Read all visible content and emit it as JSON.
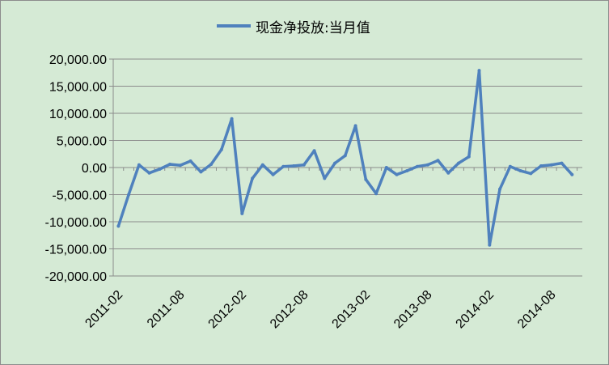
{
  "chart_data": {
    "type": "line",
    "title": "",
    "xlabel": "",
    "ylabel": "",
    "legend_position": "top",
    "grid": true,
    "colors": {
      "background": "#d5ead5",
      "line": "#4f81bd",
      "grid": "#8c8c8c"
    },
    "ylim": [
      -20000,
      20000
    ],
    "yticks": [
      "20,000.00",
      "15,000.00",
      "10,000.00",
      "5,000.00",
      "0.00",
      "-5,000.00",
      "-10,000.00",
      "-15,000.00",
      "-20,000.00"
    ],
    "xticks": [
      "2011-02",
      "2011-08",
      "2012-02",
      "2012-08",
      "2013-02",
      "2013-08",
      "2014-02",
      "2014-08"
    ],
    "series": [
      {
        "name": "现金净投放:当月值",
        "x": [
          "2011-02",
          "2011-03",
          "2011-04",
          "2011-05",
          "2011-06",
          "2011-07",
          "2011-08",
          "2011-09",
          "2011-10",
          "2011-11",
          "2011-12",
          "2012-01",
          "2012-02",
          "2012-03",
          "2012-04",
          "2012-05",
          "2012-06",
          "2012-07",
          "2012-08",
          "2012-09",
          "2012-10",
          "2012-11",
          "2012-12",
          "2013-01",
          "2013-02",
          "2013-03",
          "2013-04",
          "2013-05",
          "2013-06",
          "2013-07",
          "2013-08",
          "2013-09",
          "2013-10",
          "2013-11",
          "2013-12",
          "2014-01",
          "2014-02",
          "2014-03",
          "2014-04",
          "2014-05",
          "2014-06",
          "2014-07",
          "2014-08",
          "2014-09",
          "2014-10"
        ],
        "values": [
          -10800,
          -5000,
          500,
          -1000,
          -300,
          600,
          400,
          1200,
          -800,
          600,
          3300,
          9000,
          -8500,
          -2000,
          500,
          -1300,
          200,
          300,
          500,
          3100,
          -2000,
          800,
          2200,
          7700,
          -2200,
          -4800,
          0,
          -1300,
          -600,
          200,
          500,
          1300,
          -1000,
          800,
          2000,
          17900,
          -14300,
          -4000,
          200,
          -600,
          -1100,
          300,
          500,
          800,
          -1300
        ]
      }
    ]
  }
}
